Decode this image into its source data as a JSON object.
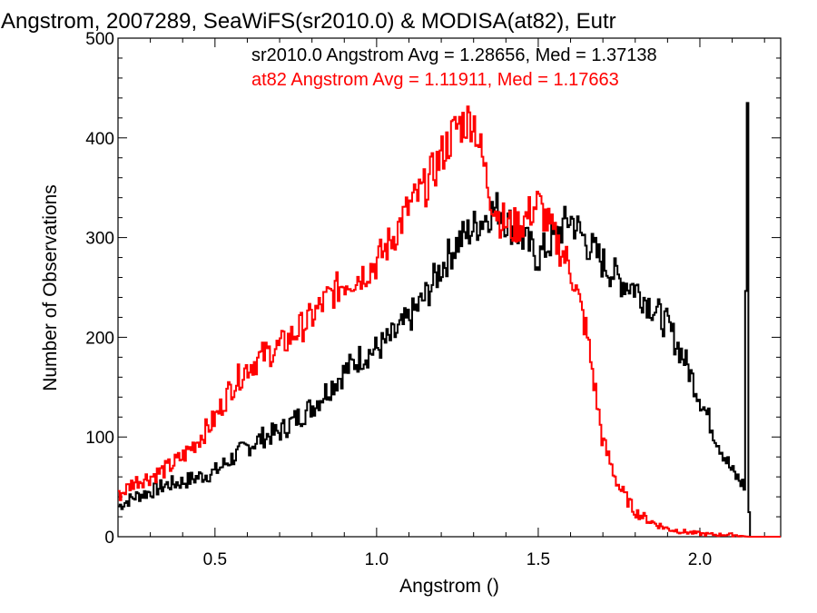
{
  "chart_data": {
    "type": "line",
    "step": true,
    "title": "Angstrom, 2007289, SeaWiFS(sr2010.0) & MODISA(at82), Eutr",
    "xlabel": "Angstrom ()",
    "ylabel": "Number of Observations",
    "xlim": [
      0.2,
      2.25
    ],
    "ylim": [
      0,
      500
    ],
    "xticks": [
      0.5,
      1.0,
      1.5,
      2.0
    ],
    "xtick_labels": [
      "0.5",
      "1.0",
      "1.5",
      "2.0"
    ],
    "yticks": [
      0,
      100,
      200,
      300,
      400,
      500
    ],
    "ytick_labels": [
      "0",
      "100",
      "200",
      "300",
      "400",
      "500"
    ],
    "grid": false,
    "legend_placement": "top-right",
    "annotations": [
      {
        "text": "sr2010.0 Angstrom Avg = 1.28656, Med = 1.37138",
        "color": "#000000"
      },
      {
        "text": "at82 Angstrom Avg = 1.11911, Med = 1.17663",
        "color": "#ff0000"
      }
    ],
    "series": [
      {
        "color": "#000000",
        "x": [
          0.2,
          0.25,
          0.3,
          0.35,
          0.4,
          0.45,
          0.5,
          0.55,
          0.6,
          0.65,
          0.7,
          0.75,
          0.8,
          0.85,
          0.9,
          0.95,
          1.0,
          1.05,
          1.1,
          1.15,
          1.2,
          1.25,
          1.3,
          1.35,
          1.38,
          1.4,
          1.45,
          1.5,
          1.55,
          1.6,
          1.65,
          1.7,
          1.75,
          1.8,
          1.85,
          1.9,
          1.95,
          2.0,
          2.05,
          2.1,
          2.14,
          2.145,
          2.15,
          2.155,
          2.16,
          2.25
        ],
        "y": [
          30,
          40,
          45,
          52,
          55,
          60,
          65,
          78,
          90,
          100,
          105,
          118,
          130,
          148,
          165,
          180,
          188,
          200,
          218,
          240,
          270,
          295,
          310,
          325,
          330,
          318,
          300,
          280,
          300,
          320,
          295,
          275,
          258,
          250,
          232,
          212,
          180,
          140,
          100,
          65,
          50,
          435,
          50,
          0,
          0,
          0
        ]
      },
      {
        "color": "#ff0000",
        "x": [
          0.2,
          0.25,
          0.3,
          0.35,
          0.4,
          0.45,
          0.5,
          0.55,
          0.6,
          0.65,
          0.7,
          0.75,
          0.8,
          0.85,
          0.9,
          0.95,
          1.0,
          1.05,
          1.1,
          1.15,
          1.2,
          1.25,
          1.3,
          1.35,
          1.38,
          1.42,
          1.45,
          1.5,
          1.55,
          1.6,
          1.65,
          1.7,
          1.75,
          1.8,
          1.85,
          1.9,
          1.95,
          2.0,
          2.05,
          2.1,
          2.15,
          2.2,
          2.25
        ],
        "y": [
          40,
          55,
          60,
          68,
          80,
          98,
          118,
          150,
          170,
          182,
          190,
          205,
          220,
          240,
          255,
          262,
          275,
          300,
          330,
          350,
          382,
          412,
          420,
          345,
          320,
          310,
          315,
          335,
          300,
          270,
          205,
          95,
          50,
          25,
          15,
          8,
          5,
          3,
          2,
          2,
          0,
          0,
          0
        ]
      }
    ]
  }
}
